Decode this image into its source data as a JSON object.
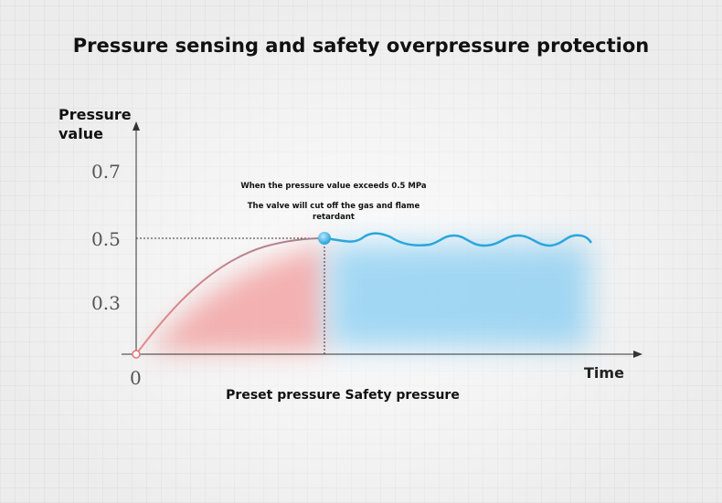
{
  "title": "Pressure sensing and safety overpressure protection",
  "chart_data": {
    "type": "line",
    "ylabel": "Pressure value",
    "xlabel": "Time",
    "y_ticks": [
      "0.7",
      "0.5",
      "0.3"
    ],
    "y_values": [
      0.7,
      0.5,
      0.3
    ],
    "origin_label": "0",
    "ylim": [
      0,
      0.8
    ],
    "threshold": 0.5,
    "grid": true,
    "annotation_line1": "When the pressure value exceeds 0.5 MPa",
    "annotation_line2": "The valve will cut off the gas and flame retardant",
    "caption": "Preset pressure Safety pressure",
    "series": [
      {
        "color": "#e58a8a",
        "x": [
          0,
          0.1,
          0.2,
          0.3,
          0.4
        ],
        "y": [
          0,
          0.27,
          0.4,
          0.47,
          0.5
        ]
      },
      {
        "color": "#2ba6dc",
        "x": [
          0.4,
          0.5,
          0.6,
          0.7,
          0.8,
          0.9,
          1.0
        ],
        "y": [
          0.5,
          0.49,
          0.51,
          0.49,
          0.51,
          0.49,
          0.51
        ]
      }
    ],
    "colors": {
      "preset": "#e58a8a",
      "safety": "#2ba6dc",
      "marker": "#49b8ec"
    }
  }
}
